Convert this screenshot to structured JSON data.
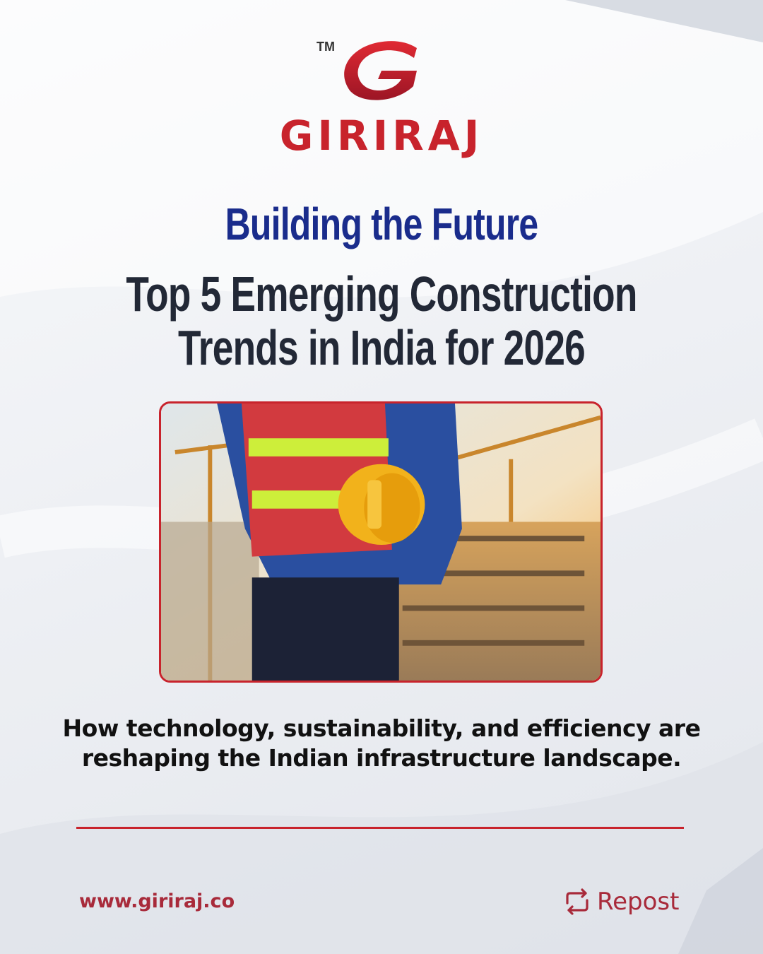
{
  "brand": {
    "trademark": "TM",
    "name": "GIRIRAJ",
    "accent_color": "#c8232c"
  },
  "headline": {
    "top": "Building the Future",
    "main_line1": "Top 5 Emerging Construction",
    "main_line2": "Trends in India for 2026"
  },
  "hero_image": {
    "subject": "construction-worker-with-hardhat",
    "border_color": "#c8232c"
  },
  "subtitle": {
    "line1": "How technology, sustainability, and efficiency are",
    "line2": "reshaping the Indian infrastructure landscape."
  },
  "footer": {
    "website": "www.giriraj.co",
    "repost_label": "Repost",
    "repost_icon": "repost-icon"
  }
}
